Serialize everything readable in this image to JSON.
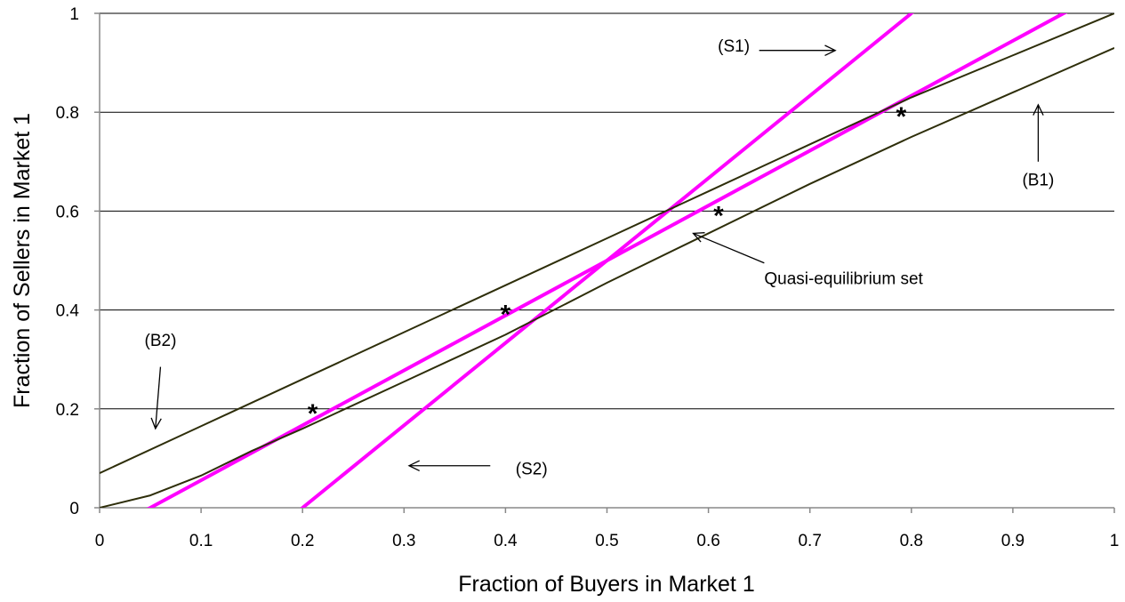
{
  "chart_data": {
    "type": "line",
    "title": "",
    "xlabel": "Fraction of Buyers in Market 1",
    "ylabel": "Fraction of Sellers in Market 1",
    "xlim": [
      0,
      1
    ],
    "ylim": [
      0,
      1
    ],
    "x_ticks": [
      "0",
      "0.1",
      "0.2",
      "0.3",
      "0.4",
      "0.5",
      "0.6",
      "0.7",
      "0.8",
      "0.9",
      "1"
    ],
    "y_ticks": [
      "0",
      "0.2",
      "0.4",
      "0.6",
      "0.8",
      "1"
    ],
    "x_tick_values": [
      0,
      0.1,
      0.2,
      0.3,
      0.4,
      0.5,
      0.6,
      0.7,
      0.8,
      0.9,
      1
    ],
    "y_tick_values": [
      0,
      0.2,
      0.4,
      0.6,
      0.8,
      1
    ],
    "grid": "horizontal",
    "colors": {
      "magenta": "#ff00ff",
      "olive": "#2e2e0a",
      "grid": "#000000"
    },
    "series": [
      {
        "color": "#ff00ff",
        "width": 4,
        "x": [
          0.05,
          0.95
        ],
        "y": [
          0,
          1
        ]
      },
      {
        "color": "#ff00ff",
        "width": 4,
        "x": [
          0.2,
          0.8
        ],
        "y": [
          0,
          1
        ]
      },
      {
        "color": "#ff00ff",
        "width": 4,
        "x": [
          0.04,
          0.05
        ],
        "y": [
          -0.01,
          0
        ]
      },
      {
        "color": "#ff00ff",
        "width": 4,
        "x": [
          0.19,
          0.2
        ],
        "y": [
          -0.02,
          0
        ]
      },
      {
        "color": "#ff00ff",
        "width": 4,
        "x": [
          0.8,
          0.81
        ],
        "y": [
          1,
          1.02
        ]
      },
      {
        "color": "#ff00ff",
        "width": 4,
        "x": [
          0.95,
          0.96
        ],
        "y": [
          1,
          1.01
        ]
      },
      {
        "color": "#2e2e0a",
        "width": 2,
        "x": [
          0,
          0.1,
          0.2,
          0.3,
          0.4,
          0.5,
          0.6,
          0.7,
          0.8,
          0.9,
          1
        ],
        "y": [
          0.07,
          0.165,
          0.26,
          0.355,
          0.45,
          0.545,
          0.64,
          0.735,
          0.83,
          0.915,
          1.0
        ]
      },
      {
        "color": "#2e2e0a",
        "width": 2,
        "x": [
          0,
          0.05,
          0.1,
          0.15,
          0.2,
          0.3,
          0.4,
          0.5,
          0.6,
          0.7,
          0.8,
          0.9,
          1
        ],
        "y": [
          0,
          0.025,
          0.065,
          0.115,
          0.16,
          0.255,
          0.35,
          0.455,
          0.555,
          0.655,
          0.75,
          0.84,
          0.93
        ]
      }
    ],
    "markers": [
      {
        "x": 0.21,
        "y": 0.2,
        "symbol": "*"
      },
      {
        "x": 0.4,
        "y": 0.4,
        "symbol": "*"
      },
      {
        "x": 0.61,
        "y": 0.6,
        "symbol": "*"
      },
      {
        "x": 0.79,
        "y": 0.8,
        "symbol": "*"
      }
    ],
    "annotations": [
      {
        "text": "(S1)",
        "x": 0.625,
        "y": 0.935,
        "arrow": {
          "from": [
            0.65,
            0.925
          ],
          "to": [
            0.725,
            0.925
          ]
        }
      },
      {
        "text": "(S2)",
        "x": 0.41,
        "y": 0.08,
        "anchor": "start",
        "arrow": {
          "from": [
            0.385,
            0.085
          ],
          "to": [
            0.305,
            0.085
          ]
        }
      },
      {
        "text": "(B1)",
        "x": 0.925,
        "y": 0.665,
        "arrow": {
          "from": [
            0.925,
            0.7
          ],
          "to": [
            0.925,
            0.815
          ]
        }
      },
      {
        "text": "(B2)",
        "x": 0.06,
        "y": 0.34,
        "arrow": {
          "from": [
            0.06,
            0.285
          ],
          "to": [
            0.055,
            0.16
          ]
        }
      },
      {
        "text": "Quasi-equilibrium set",
        "x": 0.655,
        "y": 0.465,
        "anchor": "start",
        "arrow": {
          "from": [
            0.655,
            0.495
          ],
          "to": [
            0.585,
            0.555
          ]
        }
      }
    ]
  }
}
